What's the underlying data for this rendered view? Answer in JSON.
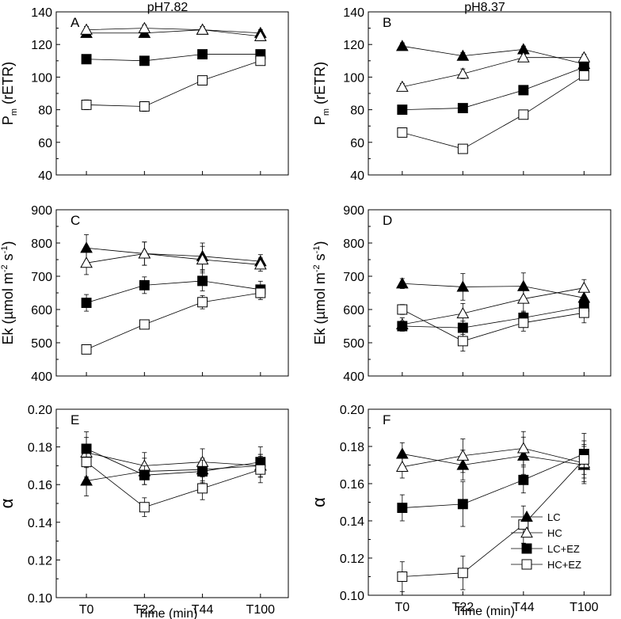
{
  "chart_data": [
    {
      "id": "A",
      "panel_label": "A",
      "title": "pH7.82",
      "type": "line",
      "ylabel_main": "P",
      "ylabel_sub": "m",
      "ylabel_rest": " (rETR)",
      "ylim": [
        40,
        140
      ],
      "yticks": [
        40,
        60,
        80,
        100,
        120,
        140
      ],
      "ytick_labels": [
        "40",
        "60",
        "80",
        "100",
        "120",
        "140"
      ],
      "categories": [
        "T0",
        "T22",
        "T44",
        "T100"
      ],
      "xlabel": "",
      "series": [
        {
          "name": "LC",
          "marker": "tri-filled",
          "values": [
            127,
            127,
            129,
            127
          ],
          "err": [
            2,
            2,
            2,
            2
          ]
        },
        {
          "name": "HC",
          "marker": "tri-open",
          "values": [
            129,
            130,
            129,
            125
          ],
          "err": [
            2,
            2,
            2,
            2
          ]
        },
        {
          "name": "LC+EZ",
          "marker": "sq-filled",
          "values": [
            111,
            110,
            114,
            114
          ],
          "err": [
            2,
            2,
            2,
            2
          ]
        },
        {
          "name": "HC+EZ",
          "marker": "sq-open",
          "values": [
            83,
            82,
            98,
            110
          ],
          "err": [
            3,
            3,
            2,
            2
          ]
        }
      ]
    },
    {
      "id": "B",
      "panel_label": "B",
      "title": "pH8.37",
      "type": "line",
      "ylabel_main": "P",
      "ylabel_sub": "m",
      "ylabel_rest": " (rETR)",
      "ylim": [
        40,
        140
      ],
      "yticks": [
        40,
        60,
        80,
        100,
        120,
        140
      ],
      "ytick_labels": [
        "40",
        "60",
        "80",
        "100",
        "120",
        "140"
      ],
      "categories": [
        "T0",
        "T22",
        "T44",
        "T100"
      ],
      "xlabel": "",
      "series": [
        {
          "name": "LC",
          "marker": "tri-filled",
          "values": [
            119,
            113,
            117,
            108
          ],
          "err": [
            2,
            2,
            2,
            2
          ]
        },
        {
          "name": "HC",
          "marker": "tri-open",
          "values": [
            94,
            102,
            112,
            112
          ],
          "err": [
            2,
            3,
            2,
            2
          ]
        },
        {
          "name": "LC+EZ",
          "marker": "sq-filled",
          "values": [
            80,
            81,
            92,
            106
          ],
          "err": [
            2,
            2,
            2,
            2
          ]
        },
        {
          "name": "HC+EZ",
          "marker": "sq-open",
          "values": [
            66,
            56,
            77,
            101
          ],
          "err": [
            2,
            2,
            2,
            2
          ]
        }
      ]
    },
    {
      "id": "C",
      "panel_label": "C",
      "title": "",
      "type": "line",
      "ylabel_main": "Ek (µmol m",
      "ylabel_sup1": "-2",
      "ylabel_mid": " s",
      "ylabel_sup2": "-1",
      "ylabel_end": ")",
      "ylim": [
        400,
        900
      ],
      "yticks": [
        400,
        500,
        600,
        700,
        800,
        900
      ],
      "ytick_labels": [
        "400",
        "500",
        "600",
        "700",
        "800",
        "900"
      ],
      "categories": [
        "T0",
        "T22",
        "T44",
        "T100"
      ],
      "xlabel": "",
      "series": [
        {
          "name": "LC",
          "marker": "tri-filled",
          "values": [
            785,
            768,
            760,
            745
          ],
          "err": [
            40,
            35,
            40,
            20
          ]
        },
        {
          "name": "HC",
          "marker": "tri-open",
          "values": [
            740,
            768,
            750,
            735
          ],
          "err": [
            35,
            35,
            40,
            20
          ]
        },
        {
          "name": "LC+EZ",
          "marker": "sq-filled",
          "values": [
            620,
            673,
            686,
            660
          ],
          "err": [
            25,
            25,
            30,
            25
          ]
        },
        {
          "name": "HC+EZ",
          "marker": "sq-open",
          "values": [
            480,
            555,
            622,
            650
          ],
          "err": [
            10,
            10,
            20,
            20
          ]
        }
      ]
    },
    {
      "id": "D",
      "panel_label": "D",
      "title": "",
      "type": "line",
      "ylabel_main": "Ek (µmol m",
      "ylabel_sup1": "-2",
      "ylabel_mid": " s",
      "ylabel_sup2": "-1",
      "ylabel_end": ")",
      "ylim": [
        400,
        900
      ],
      "yticks": [
        400,
        500,
        600,
        700,
        800,
        900
      ],
      "ytick_labels": [
        "400",
        "500",
        "600",
        "700",
        "800",
        "900"
      ],
      "categories": [
        "T0",
        "T22",
        "T44",
        "T100"
      ],
      "xlabel": "",
      "series": [
        {
          "name": "LC",
          "marker": "tri-filled",
          "values": [
            678,
            668,
            670,
            635
          ],
          "err": [
            15,
            40,
            40,
            25
          ]
        },
        {
          "name": "HC",
          "marker": "tri-open",
          "values": [
            555,
            588,
            632,
            665
          ],
          "err": [
            20,
            30,
            40,
            25
          ]
        },
        {
          "name": "LC+EZ",
          "marker": "sq-filled",
          "values": [
            550,
            545,
            575,
            608
          ],
          "err": [
            15,
            20,
            20,
            25
          ]
        },
        {
          "name": "HC+EZ",
          "marker": "sq-open",
          "values": [
            600,
            505,
            560,
            590
          ],
          "err": [
            15,
            30,
            25,
            30
          ]
        }
      ]
    },
    {
      "id": "E",
      "panel_label": "E",
      "title": "",
      "type": "line",
      "ylabel_main": "α",
      "ylim": [
        0.1,
        0.2
      ],
      "yticks": [
        0.1,
        0.12,
        0.14,
        0.16,
        0.18,
        0.2
      ],
      "ytick_labels": [
        "0.10",
        "0.12",
        "0.14",
        "0.16",
        "0.18",
        "0.20"
      ],
      "categories": [
        "T0",
        "T22",
        "T44",
        "T100"
      ],
      "xlabel": "Time (min)",
      "series": [
        {
          "name": "LC",
          "marker": "tri-filled",
          "values": [
            0.162,
            0.167,
            0.168,
            0.17
          ],
          "err": [
            0.008,
            0.007,
            0.006,
            0.006
          ]
        },
        {
          "name": "HC",
          "marker": "tri-open",
          "values": [
            0.177,
            0.17,
            0.172,
            0.17
          ],
          "err": [
            0.008,
            0.007,
            0.007,
            0.006
          ]
        },
        {
          "name": "LC+EZ",
          "marker": "sq-filled",
          "values": [
            0.179,
            0.165,
            0.167,
            0.172
          ],
          "err": [
            0.009,
            0.005,
            0.006,
            0.008
          ]
        },
        {
          "name": "HC+EZ",
          "marker": "sq-open",
          "values": [
            0.172,
            0.148,
            0.158,
            0.168
          ],
          "err": [
            0.008,
            0.005,
            0.006,
            0.007
          ]
        }
      ]
    },
    {
      "id": "F",
      "panel_label": "F",
      "title": "",
      "type": "line",
      "ylabel_main": "α",
      "ylim": [
        0.1,
        0.2
      ],
      "yticks": [
        0.1,
        0.12,
        0.14,
        0.16,
        0.18,
        0.2
      ],
      "ytick_labels": [
        "0.10",
        "0.12",
        "0.14",
        "0.16",
        "0.18",
        "0.20"
      ],
      "categories": [
        "T0",
        "T22",
        "T44",
        "T100"
      ],
      "xlabel": "Time (min)",
      "legend_position": "bottom-right",
      "series": [
        {
          "name": "LC",
          "marker": "tri-filled",
          "values": [
            0.176,
            0.17,
            0.175,
            0.17
          ],
          "err": [
            0.006,
            0.008,
            0.01,
            0.01
          ]
        },
        {
          "name": "HC",
          "marker": "tri-open",
          "values": [
            0.169,
            0.175,
            0.179,
            0.171
          ],
          "err": [
            0.006,
            0.009,
            0.009,
            0.01
          ]
        },
        {
          "name": "LC+EZ",
          "marker": "sq-filled",
          "values": [
            0.147,
            0.149,
            0.162,
            0.176
          ],
          "err": [
            0.007,
            0.012,
            0.007,
            0.011
          ]
        },
        {
          "name": "HC+EZ",
          "marker": "sq-open",
          "values": [
            0.11,
            0.112,
            0.138,
            0.173
          ],
          "err": [
            0.008,
            0.009,
            0.01,
            0.01
          ]
        }
      ]
    }
  ],
  "legend": {
    "items": [
      {
        "label": "LC",
        "marker": "tri-filled"
      },
      {
        "label": "HC",
        "marker": "tri-open"
      },
      {
        "label": "LC+EZ",
        "marker": "sq-filled"
      },
      {
        "label": "HC+EZ",
        "marker": "sq-open"
      }
    ]
  }
}
